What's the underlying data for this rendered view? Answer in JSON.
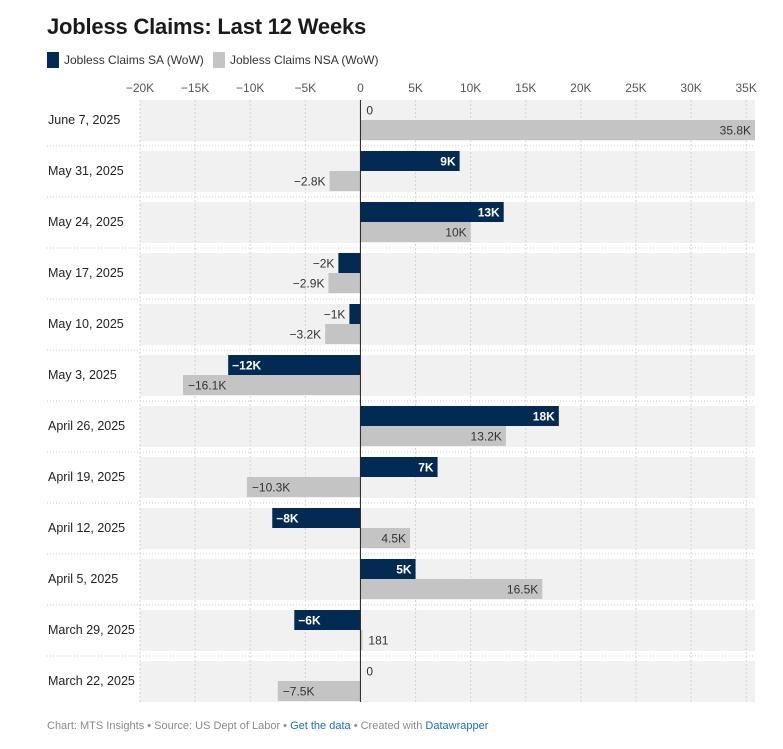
{
  "title": "Jobless Claims: Last 12 Weeks",
  "colors": {
    "sa": "#022a52",
    "nsa": "#c4c4c4",
    "row_bg": "#f1f1f1"
  },
  "chart_data": {
    "type": "bar",
    "orientation": "horizontal",
    "title": "Jobless Claims: Last 12 Weeks",
    "categories": [
      "June 7, 2025",
      "May 31, 2025",
      "May 24, 2025",
      "May 17, 2025",
      "May 10, 2025",
      "May 3, 2025",
      "April 26, 2025",
      "April 19, 2025",
      "April 12, 2025",
      "April 5, 2025",
      "March 29, 2025",
      "March 22, 2025"
    ],
    "series": [
      {
        "name": "Jobless Claims SA (WoW)",
        "values": [
          0,
          9000,
          13000,
          -2000,
          -1000,
          -12000,
          18000,
          7000,
          -8000,
          5000,
          -6000,
          0
        ],
        "labels": [
          "0",
          "9K",
          "13K",
          "−2K",
          "−1K",
          "−12K",
          "18K",
          "7K",
          "−8K",
          "5K",
          "−6K",
          "0"
        ]
      },
      {
        "name": "Jobless Claims NSA (WoW)",
        "values": [
          35800,
          -2800,
          10000,
          -2900,
          -3200,
          -16100,
          13200,
          -10300,
          4500,
          16500,
          181,
          -7500
        ],
        "labels": [
          "35.8K",
          "−2.8K",
          "10K",
          "−2.9K",
          "−3.2K",
          "−16.1K",
          "13.2K",
          "−10.3K",
          "4.5K",
          "16.5K",
          "181",
          "−7.5K"
        ]
      }
    ],
    "x_ticks": [
      -20000,
      -15000,
      -10000,
      -5000,
      0,
      5000,
      10000,
      15000,
      20000,
      25000,
      30000,
      35000
    ],
    "x_tick_labels": [
      "−20K",
      "−15K",
      "−10K",
      "−5K",
      "0",
      "5K",
      "10K",
      "15K",
      "20K",
      "25K",
      "30K",
      "35K"
    ],
    "xlim": [
      -20000,
      35800
    ],
    "grid": true,
    "legend_position": "top-left"
  },
  "legend": [
    {
      "label": "Jobless Claims SA (WoW)"
    },
    {
      "label": "Jobless Claims NSA (WoW)"
    }
  ],
  "footer": {
    "prefix": "Chart: MTS Insights • Source: US Dept of Labor • ",
    "link1": "Get the data",
    "middle": " • Created with ",
    "link2": "Datawrapper"
  }
}
